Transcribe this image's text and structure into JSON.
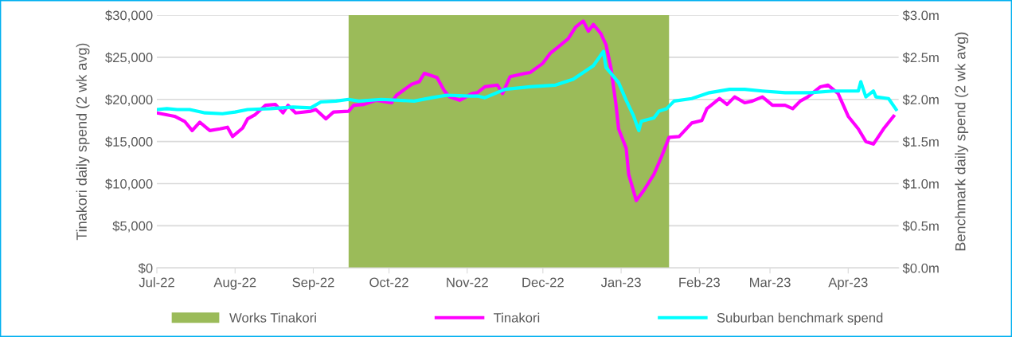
{
  "chart_data": {
    "type": "line",
    "ylabel": "Tinakori daily spend (2 wk avg)",
    "y2label": "Benchmark daily spend (2 wk avg)",
    "xlim": [
      "2022-07-01",
      "2023-04-21"
    ],
    "xticks": [
      {
        "value": "2022-07-01",
        "label": "Jul-22"
      },
      {
        "value": "2022-08-01",
        "label": "Aug-22"
      },
      {
        "value": "2022-09-01",
        "label": "Sep-22"
      },
      {
        "value": "2022-10-01",
        "label": "Oct-22"
      },
      {
        "value": "2022-11-01",
        "label": "Nov-22"
      },
      {
        "value": "2022-12-01",
        "label": "Dec-22"
      },
      {
        "value": "2023-01-01",
        "label": "Jan-23"
      },
      {
        "value": "2023-02-01",
        "label": "Feb-23"
      },
      {
        "value": "2023-03-01",
        "label": "Mar-23"
      },
      {
        "value": "2023-04-01",
        "label": "Apr-23"
      }
    ],
    "ylim": [
      0,
      30000
    ],
    "yticks": [
      {
        "value": 0,
        "label": "$0"
      },
      {
        "value": 5000,
        "label": "$5,000"
      },
      {
        "value": 10000,
        "label": "$10,000"
      },
      {
        "value": 15000,
        "label": "$15,000"
      },
      {
        "value": 20000,
        "label": "$20,000"
      },
      {
        "value": 25000,
        "label": "$25,000"
      },
      {
        "value": 30000,
        "label": "$30,000"
      }
    ],
    "y2lim": [
      0,
      3
    ],
    "y2ticks": [
      {
        "value": 0,
        "label": "$0.0m"
      },
      {
        "value": 0.5,
        "label": "$0.5m"
      },
      {
        "value": 1,
        "label": "$1.0m"
      },
      {
        "value": 1.5,
        "label": "$1.5m"
      },
      {
        "value": 2,
        "label": "$2.0m"
      },
      {
        "value": 2.5,
        "label": "$2.5m"
      },
      {
        "value": 3,
        "label": "$3.0m"
      }
    ],
    "grid": "y",
    "legend": "bottom",
    "marker": "none",
    "line_style": "solid",
    "bands": [
      {
        "axis": "x",
        "from": "2022-09-15",
        "to": "2023-01-20",
        "label": "Works Tinakori",
        "color": "#9bbb59"
      }
    ],
    "series": [
      {
        "name": "Tinakori",
        "color": "#ff00ff",
        "x": [
          "2022-07-01",
          "2022-07-08",
          "2022-07-12",
          "2022-07-15",
          "2022-07-18",
          "2022-07-22",
          "2022-07-26",
          "2022-07-29",
          "2022-07-31",
          "2022-08-04",
          "2022-08-06",
          "2022-08-09",
          "2022-08-13",
          "2022-08-17",
          "2022-08-20",
          "2022-08-22",
          "2022-08-25",
          "2022-08-31",
          "2022-09-02",
          "2022-09-06",
          "2022-09-09",
          "2022-09-15",
          "2022-09-17",
          "2022-09-21",
          "2022-09-26",
          "2022-10-02",
          "2022-10-04",
          "2022-10-10",
          "2022-10-13",
          "2022-10-15",
          "2022-10-20",
          "2022-10-23",
          "2022-10-25",
          "2022-10-29",
          "2022-11-03",
          "2022-11-05",
          "2022-11-08",
          "2022-11-13",
          "2022-11-15",
          "2022-11-18",
          "2022-11-24",
          "2022-11-26",
          "2022-12-01",
          "2022-12-04",
          "2022-12-07",
          "2022-12-11",
          "2022-12-14",
          "2022-12-17",
          "2022-12-19",
          "2022-12-21",
          "2022-12-24",
          "2022-12-26",
          "2022-12-28",
          "2022-12-30",
          "2022-12-31",
          "2023-01-03",
          "2023-01-04",
          "2023-01-07",
          "2023-01-10",
          "2023-01-14",
          "2023-01-17",
          "2023-01-20",
          "2023-01-24",
          "2023-01-29",
          "2023-02-02",
          "2023-02-04",
          "2023-02-09",
          "2023-02-12",
          "2023-02-15",
          "2023-02-19",
          "2023-02-22",
          "2023-02-26",
          "2023-03-02",
          "2023-03-07",
          "2023-03-10",
          "2023-03-13",
          "2023-03-16",
          "2023-03-21",
          "2023-03-24",
          "2023-03-28",
          "2023-04-01",
          "2023-04-05",
          "2023-04-08",
          "2023-04-11",
          "2023-04-15",
          "2023-04-19"
        ],
        "values": [
          18400,
          18000,
          17400,
          16300,
          17300,
          16300,
          16500,
          16700,
          15600,
          16600,
          17700,
          18200,
          19300,
          19400,
          18400,
          19300,
          18400,
          18600,
          18800,
          17700,
          18500,
          18600,
          19300,
          19400,
          19900,
          19600,
          20500,
          21800,
          22100,
          23100,
          22600,
          21000,
          20300,
          19900,
          20700,
          20800,
          21500,
          21700,
          20700,
          22700,
          23100,
          23200,
          24300,
          25500,
          26200,
          27200,
          28600,
          29300,
          28100,
          28900,
          27800,
          26500,
          23700,
          19300,
          16500,
          14200,
          11100,
          8000,
          9200,
          11100,
          13200,
          15500,
          15600,
          17200,
          17500,
          18900,
          20100,
          19400,
          20300,
          19600,
          19800,
          20300,
          19300,
          19300,
          18900,
          19800,
          20300,
          21500,
          21700,
          20700,
          18000,
          16500,
          15000,
          14700,
          16500,
          18000
        ]
      },
      {
        "name": "Suburban benchmark spend",
        "color": "#00ffff",
        "axis": "y2",
        "x": [
          "2022-07-01",
          "2022-07-05",
          "2022-07-09",
          "2022-07-14",
          "2022-07-20",
          "2022-07-27",
          "2022-08-01",
          "2022-08-06",
          "2022-08-15",
          "2022-08-24",
          "2022-08-31",
          "2022-09-04",
          "2022-09-10",
          "2022-09-15",
          "2022-09-19",
          "2022-09-28",
          "2022-10-11",
          "2022-10-18",
          "2022-10-24",
          "2022-11-02",
          "2022-11-05",
          "2022-11-08",
          "2022-11-16",
          "2022-11-26",
          "2022-12-06",
          "2022-12-13",
          "2022-12-17",
          "2022-12-21",
          "2022-12-25",
          "2022-12-26",
          "2022-12-31",
          "2023-01-03",
          "2023-01-06",
          "2023-01-08",
          "2023-01-09",
          "2023-01-14",
          "2023-01-16",
          "2023-01-19",
          "2023-01-22",
          "2023-01-29",
          "2023-02-05",
          "2023-02-13",
          "2023-02-19",
          "2023-02-26",
          "2023-03-07",
          "2023-03-17",
          "2023-03-26",
          "2023-04-05",
          "2023-04-06",
          "2023-04-08",
          "2023-04-11",
          "2023-04-12",
          "2023-04-17",
          "2023-04-20"
        ],
        "values": [
          1.88,
          1.89,
          1.88,
          1.88,
          1.84,
          1.83,
          1.85,
          1.88,
          1.89,
          1.91,
          1.9,
          1.97,
          1.98,
          2.0,
          1.98,
          2.0,
          1.98,
          2.02,
          2.05,
          2.04,
          2.04,
          2.02,
          2.12,
          2.15,
          2.17,
          2.24,
          2.32,
          2.4,
          2.57,
          2.38,
          2.2,
          1.99,
          1.8,
          1.63,
          1.74,
          1.78,
          1.86,
          1.89,
          1.98,
          2.01,
          2.08,
          2.12,
          2.12,
          2.1,
          2.08,
          2.08,
          2.1,
          2.1,
          2.21,
          2.03,
          2.1,
          2.03,
          2.01,
          1.88
        ]
      }
    ]
  }
}
